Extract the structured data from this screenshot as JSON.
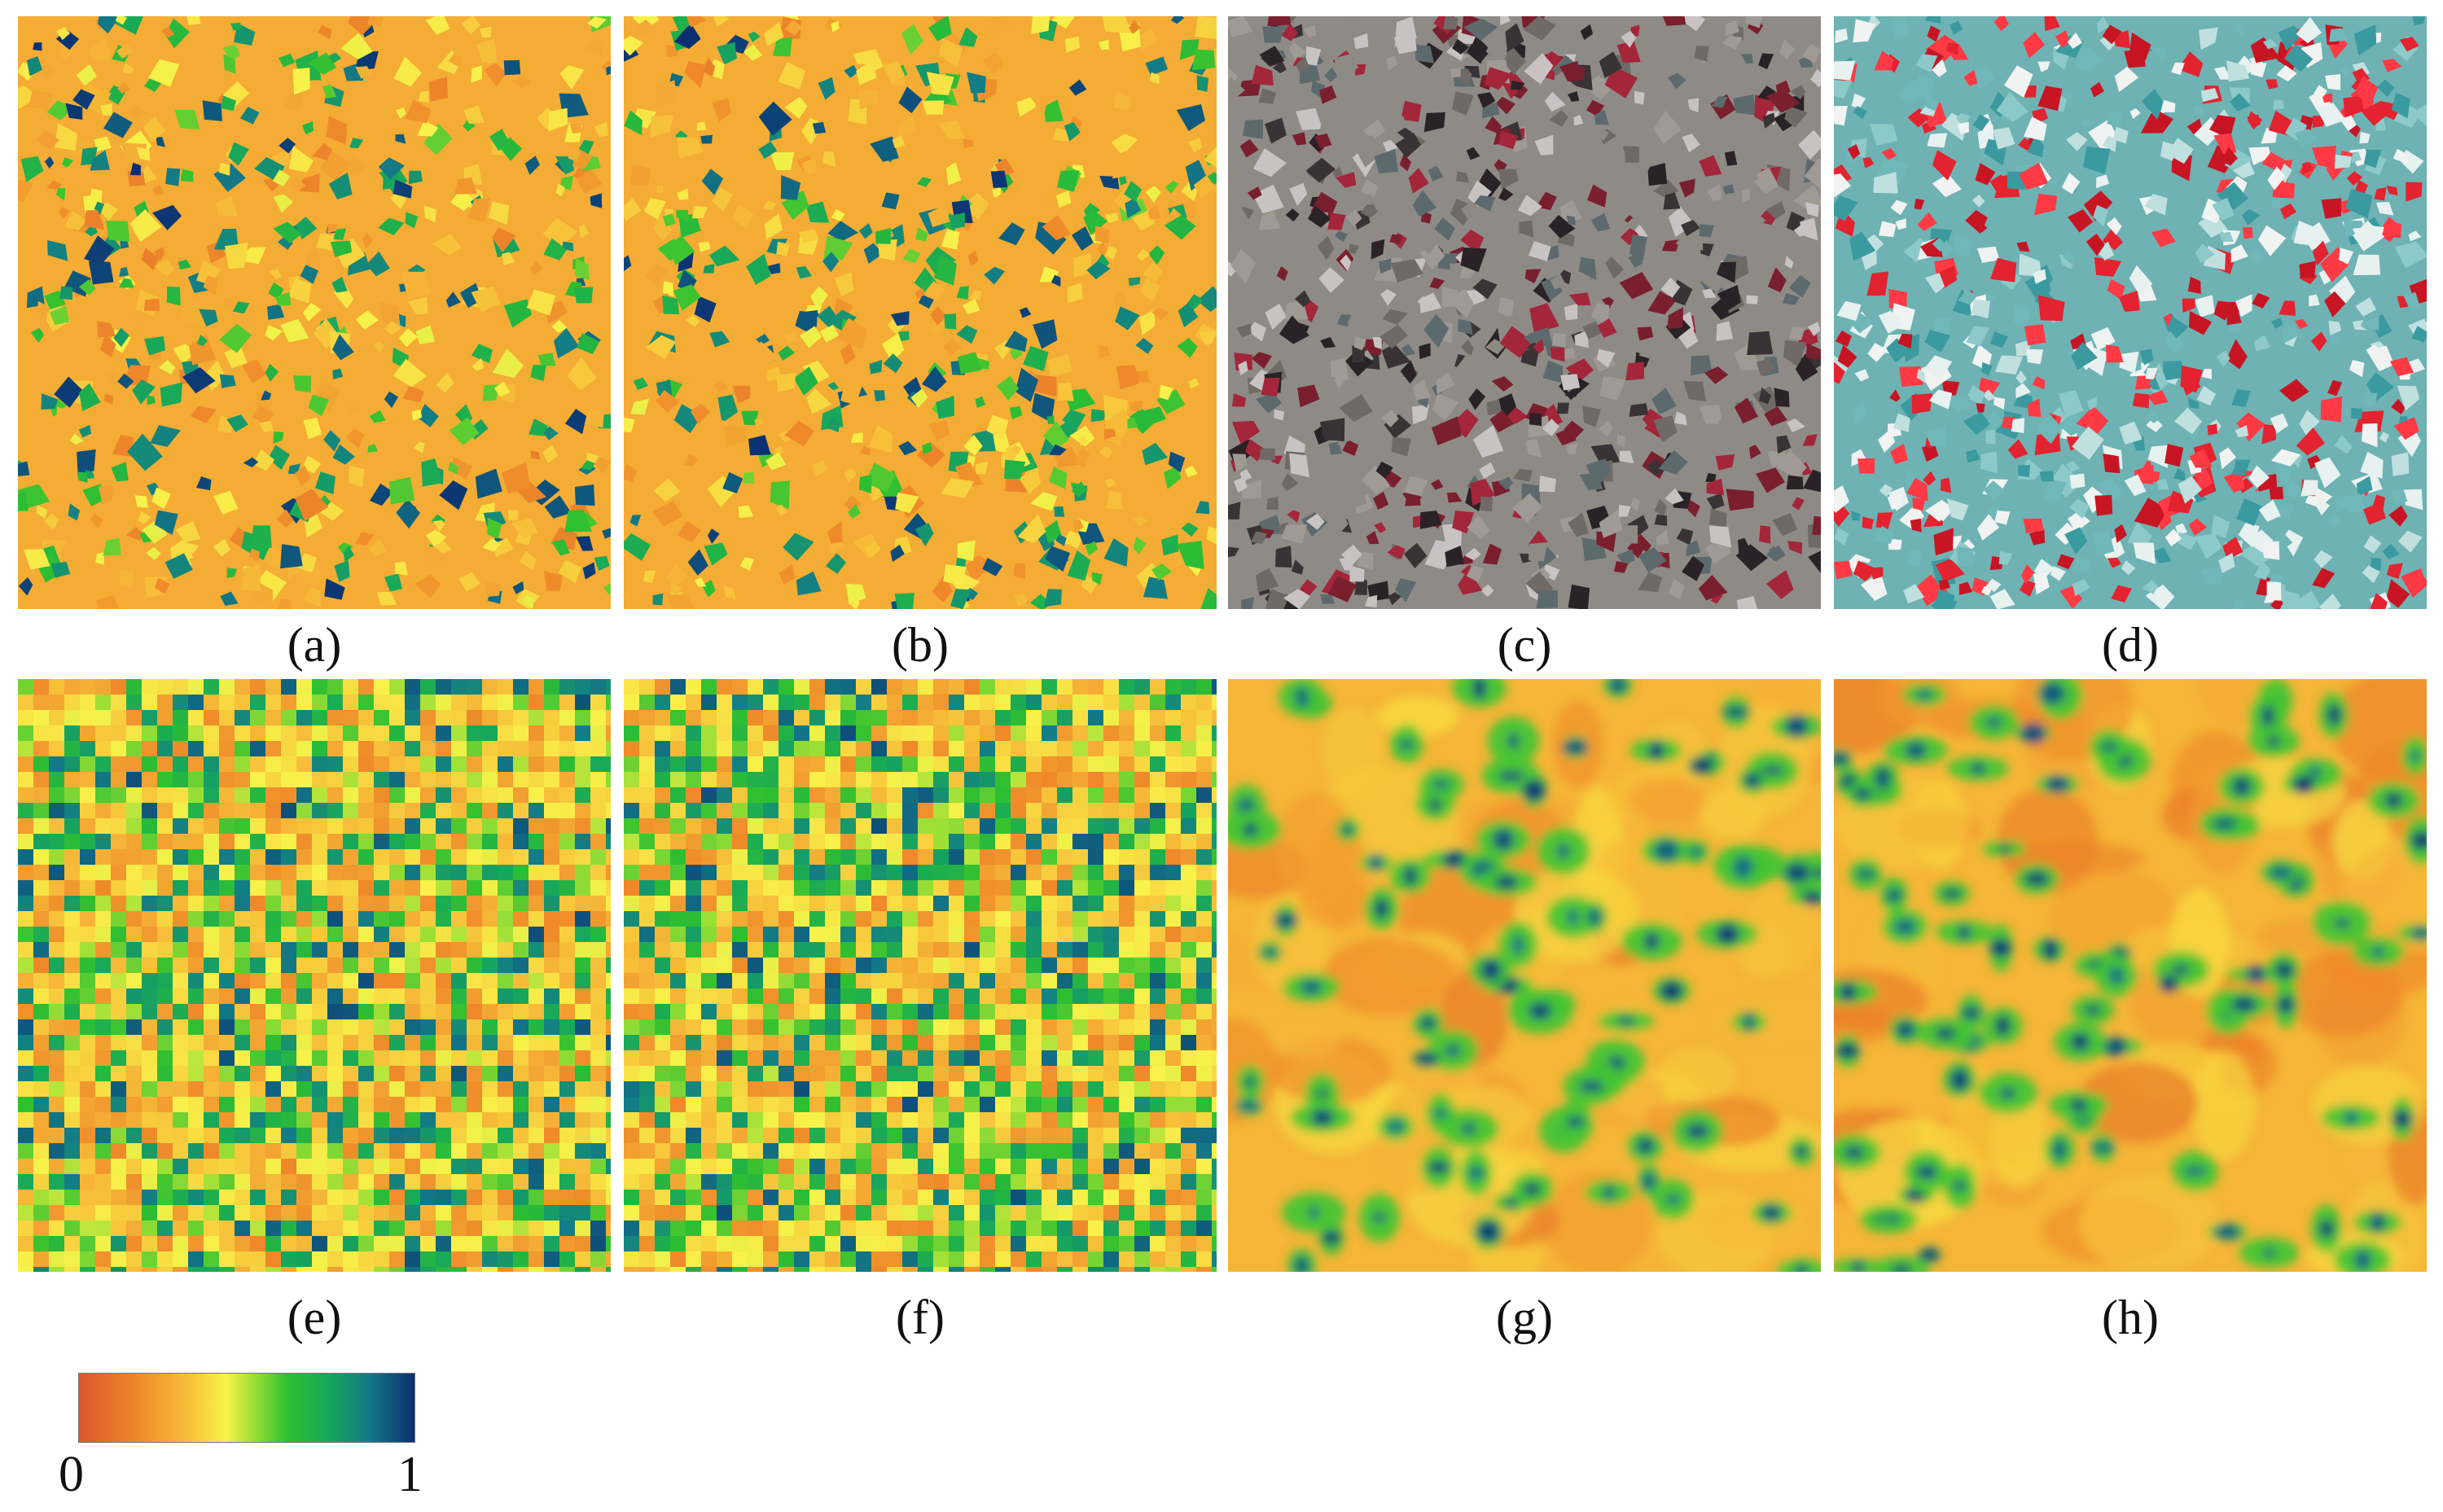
{
  "panels": [
    {
      "id": "a",
      "label": "(a)",
      "style": "fraction-sharp"
    },
    {
      "id": "b",
      "label": "(b)",
      "style": "fraction-sharp"
    },
    {
      "id": "c",
      "label": "(c)",
      "style": "false-color-natural"
    },
    {
      "id": "d",
      "label": "(d)",
      "style": "false-color-vivid"
    },
    {
      "id": "e",
      "label": "(e)",
      "style": "fraction-coarse"
    },
    {
      "id": "f",
      "label": "(f)",
      "style": "fraction-coarse"
    },
    {
      "id": "g",
      "label": "(g)",
      "style": "fraction-smooth"
    },
    {
      "id": "h",
      "label": "(h)",
      "style": "fraction-smooth"
    }
  ],
  "colorbar": {
    "min_label": "0",
    "max_label": "1",
    "colors": [
      "#d9572d",
      "#ef8a2a",
      "#f7c23a",
      "#f8f24a",
      "#9cdf35",
      "#2fbf30",
      "#18a85a",
      "#137c86",
      "#0b2f72"
    ]
  }
}
